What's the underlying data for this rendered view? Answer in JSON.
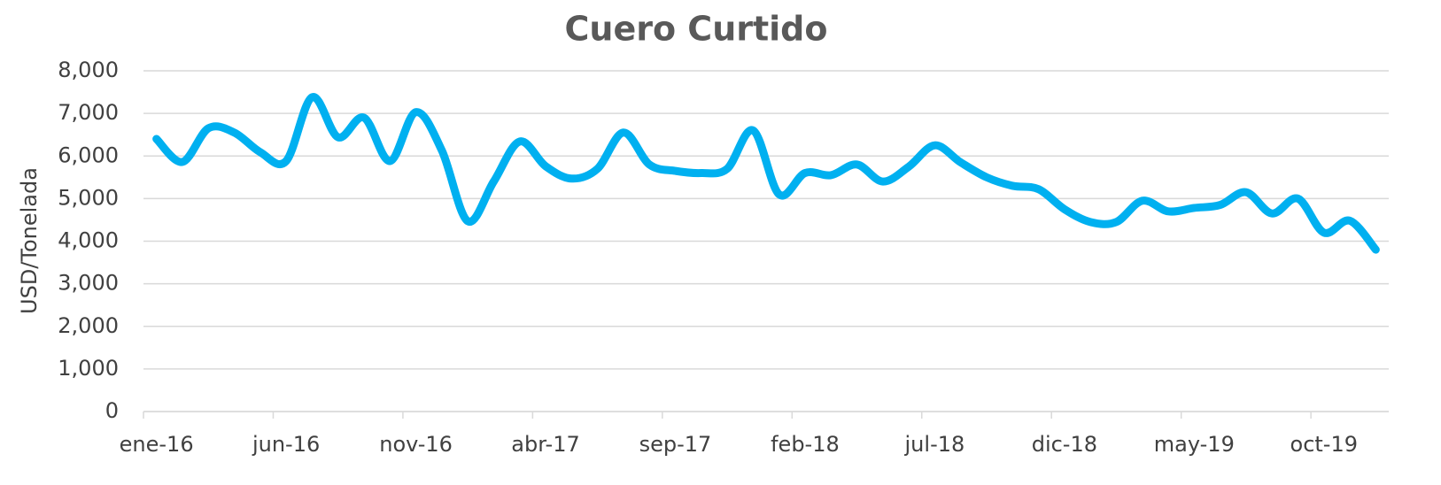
{
  "chart_data": {
    "type": "line",
    "title": "Cuero Curtido",
    "y_label": "USD/Tonelada",
    "categories": [
      "ene-16",
      null,
      null,
      null,
      null,
      "jun-16",
      null,
      null,
      null,
      null,
      "nov-16",
      null,
      null,
      null,
      null,
      "abr-17",
      null,
      null,
      null,
      null,
      "sep-17",
      null,
      null,
      null,
      null,
      "feb-18",
      null,
      null,
      null,
      null,
      "jul-18",
      null,
      null,
      null,
      null,
      "dic-18",
      null,
      null,
      null,
      null,
      "may-19",
      null,
      null,
      null,
      null,
      "oct-19",
      null,
      null
    ],
    "series": [
      {
        "name": "Cuero Curtido",
        "color": "#00b0f0",
        "values": [
          6400,
          5860,
          6650,
          6550,
          6090,
          5880,
          7380,
          6440,
          6900,
          5880,
          7030,
          6130,
          4470,
          5400,
          6340,
          5760,
          5470,
          5700,
          6550,
          5800,
          5650,
          5600,
          5700,
          6600,
          5100,
          5600,
          5550,
          5800,
          5400,
          5750,
          6250,
          5850,
          5500,
          5300,
          5220,
          4750,
          4450,
          4450,
          4950,
          4700,
          4780,
          4850,
          5150,
          4650,
          5000,
          4200,
          4480,
          3800
        ]
      }
    ],
    "ylim": [
      0,
      8000
    ],
    "yticks": [
      0,
      {
        "value": 1000,
        "label": "1,000"
      },
      {
        "value": 2000,
        "label": "2,000"
      },
      {
        "value": 3000,
        "label": "3,000"
      },
      {
        "value": 4000,
        "label": "4,000"
      },
      {
        "value": 5000,
        "label": "5,000"
      },
      {
        "value": 6000,
        "label": "6,000"
      },
      {
        "value": 7000,
        "label": "7,000"
      },
      {
        "value": 8000,
        "label": "8,000"
      }
    ],
    "grid": true
  }
}
